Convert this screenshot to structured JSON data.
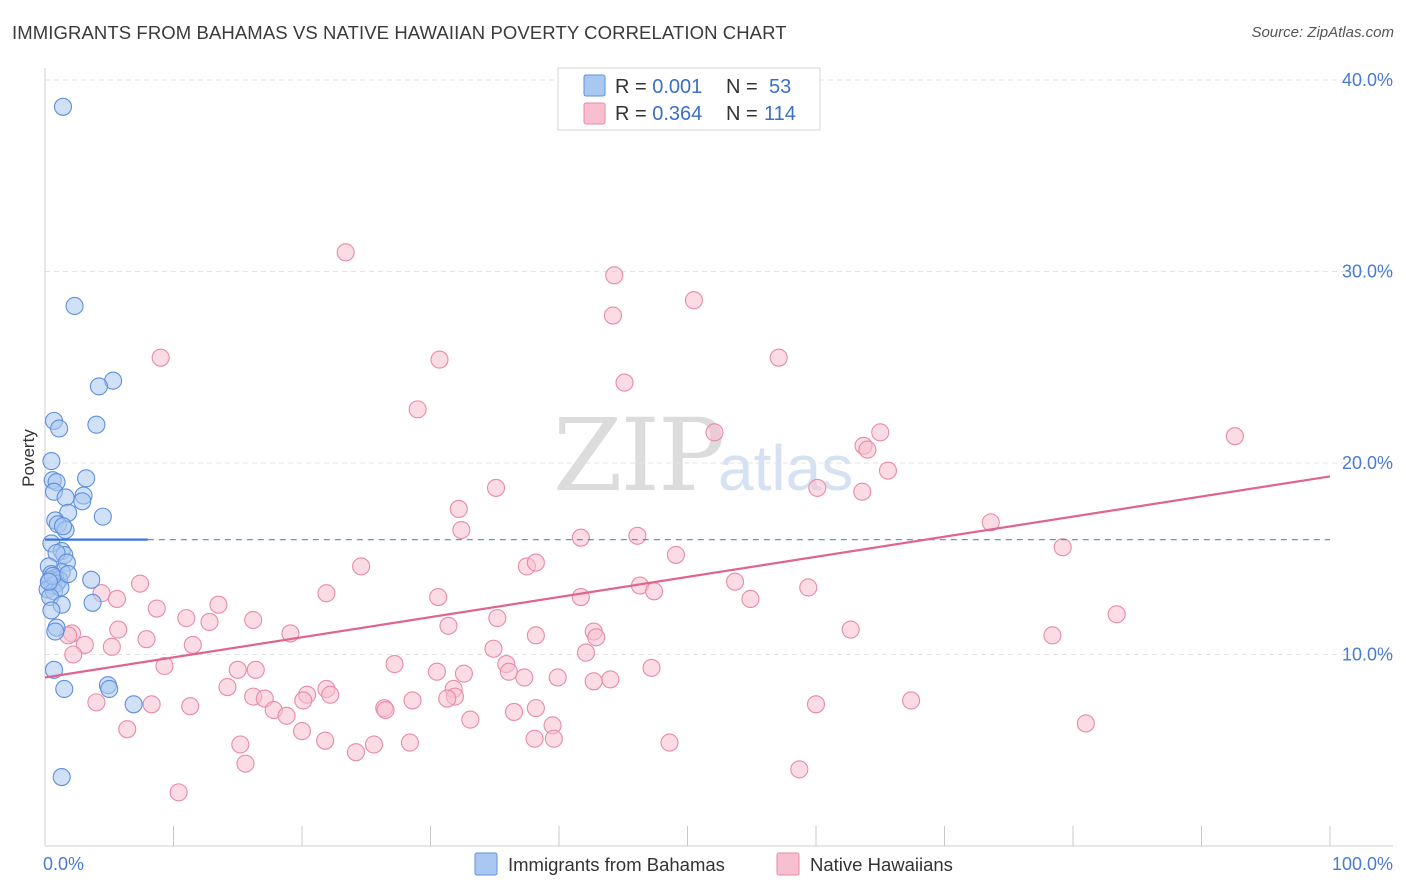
{
  "title": "IMMIGRANTS FROM BAHAMAS VS NATIVE HAWAIIAN POVERTY CORRELATION CHART",
  "source": "Source: ZipAtlas.com",
  "watermark": {
    "zip": "ZIP",
    "atlas": "atlas"
  },
  "colors": {
    "blue_fill": "#a9c8f1",
    "blue_stroke": "#5f8fdc",
    "blue_line": "#3a78d6",
    "pink_fill": "#f7bfd0",
    "pink_stroke": "#e88aa8",
    "pink_line": "#e0648f",
    "grid": "#e3e3e3",
    "axis_label": "#4a7bd0"
  },
  "legend": {
    "rows": [
      {
        "r_label": "R = ",
        "r_value": "0.001",
        "n_label": "N = ",
        "n_value": "53"
      },
      {
        "r_label": "R = ",
        "r_value": "0.364",
        "n_label": "N = ",
        "n_value": "114"
      }
    ]
  },
  "bottom_legend": [
    "Immigrants from Bahamas",
    "Native Hawaiians"
  ],
  "chart_data": {
    "type": "scatter",
    "title": "IMMIGRANTS FROM BAHAMAS VS NATIVE HAWAIIAN POVERTY CORRELATION CHART",
    "xlabel": "",
    "ylabel": "Poverty",
    "xlim": [
      0,
      100
    ],
    "ylim": [
      0,
      40
    ],
    "y_ticks": [
      {
        "value": 10,
        "label": "10.0%"
      },
      {
        "value": 20,
        "label": "20.0%"
      },
      {
        "value": 30,
        "label": "30.0%"
      },
      {
        "value": 40,
        "label": "40.0%"
      }
    ],
    "x_tick_labels": {
      "min": "0.0%",
      "max": "100.0%"
    },
    "grid": true,
    "legend_position": "top-center",
    "series": [
      {
        "name": "Immigrants from Bahamas",
        "color": "blue",
        "R": 0.001,
        "N": 53,
        "trend": {
          "x1": 0,
          "y1": 16.0,
          "x2": 8,
          "y2": 16.0,
          "dashed_to_x": 100
        },
        "points": [
          [
            1.4,
            38.6
          ],
          [
            2.3,
            28.2
          ],
          [
            5.3,
            24.3
          ],
          [
            4.2,
            24.0
          ],
          [
            0.7,
            22.2
          ],
          [
            1.1,
            21.8
          ],
          [
            4.0,
            22.0
          ],
          [
            0.5,
            20.1
          ],
          [
            3.2,
            19.2
          ],
          [
            0.6,
            19.1
          ],
          [
            0.9,
            19.0
          ],
          [
            0.7,
            18.5
          ],
          [
            1.6,
            18.2
          ],
          [
            3.0,
            18.3
          ],
          [
            2.9,
            18.0
          ],
          [
            1.8,
            17.4
          ],
          [
            4.5,
            17.2
          ],
          [
            0.8,
            17.0
          ],
          [
            1.0,
            16.8
          ],
          [
            1.6,
            16.5
          ],
          [
            1.4,
            16.7
          ],
          [
            0.5,
            15.8
          ],
          [
            1.3,
            15.4
          ],
          [
            1.5,
            15.2
          ],
          [
            0.9,
            15.3
          ],
          [
            1.7,
            14.8
          ],
          [
            1.3,
            14.3
          ],
          [
            0.3,
            14.6
          ],
          [
            0.5,
            14.2
          ],
          [
            0.8,
            14.0
          ],
          [
            0.4,
            13.9
          ],
          [
            1.1,
            13.9
          ],
          [
            3.6,
            13.9
          ],
          [
            0.6,
            13.6
          ],
          [
            0.9,
            13.7
          ],
          [
            0.2,
            13.4
          ],
          [
            0.7,
            13.3
          ],
          [
            1.2,
            13.5
          ],
          [
            0.4,
            13.0
          ],
          [
            1.3,
            12.6
          ],
          [
            0.5,
            12.3
          ],
          [
            3.7,
            12.7
          ],
          [
            0.9,
            11.4
          ],
          [
            0.8,
            11.2
          ],
          [
            0.7,
            9.2
          ],
          [
            1.5,
            8.2
          ],
          [
            4.9,
            8.4
          ],
          [
            5.0,
            8.2
          ],
          [
            0.6,
            14.1
          ],
          [
            6.9,
            7.4
          ],
          [
            1.3,
            3.6
          ],
          [
            1.8,
            14.2
          ],
          [
            0.3,
            13.8
          ]
        ]
      },
      {
        "name": "Native Hawaiians",
        "color": "pink",
        "R": 0.364,
        "N": 114,
        "trend": {
          "x1": 0,
          "y1": 8.8,
          "x2": 100,
          "y2": 19.3
        },
        "points": [
          [
            23.4,
            31.0
          ],
          [
            44.3,
            29.8
          ],
          [
            50.5,
            28.5
          ],
          [
            44.2,
            27.7
          ],
          [
            30.7,
            25.4
          ],
          [
            9.0,
            25.5
          ],
          [
            57.1,
            25.5
          ],
          [
            45.1,
            24.2
          ],
          [
            29.0,
            22.8
          ],
          [
            52.1,
            21.6
          ],
          [
            65.0,
            21.6
          ],
          [
            92.6,
            21.4
          ],
          [
            63.7,
            20.9
          ],
          [
            64.0,
            20.7
          ],
          [
            65.6,
            19.6
          ],
          [
            35.1,
            18.7
          ],
          [
            60.1,
            18.7
          ],
          [
            63.6,
            18.5
          ],
          [
            32.2,
            17.6
          ],
          [
            32.4,
            16.5
          ],
          [
            73.6,
            16.9
          ],
          [
            41.7,
            16.1
          ],
          [
            46.1,
            16.2
          ],
          [
            79.2,
            15.6
          ],
          [
            49.1,
            15.2
          ],
          [
            37.5,
            14.6
          ],
          [
            38.2,
            14.8
          ],
          [
            24.6,
            14.6
          ],
          [
            53.7,
            13.8
          ],
          [
            7.4,
            13.7
          ],
          [
            46.3,
            13.6
          ],
          [
            59.4,
            13.5
          ],
          [
            47.4,
            13.3
          ],
          [
            21.9,
            13.2
          ],
          [
            30.6,
            13.0
          ],
          [
            41.7,
            13.0
          ],
          [
            54.9,
            12.9
          ],
          [
            4.4,
            13.2
          ],
          [
            5.6,
            12.9
          ],
          [
            13.5,
            12.6
          ],
          [
            8.7,
            12.4
          ],
          [
            83.4,
            12.1
          ],
          [
            35.2,
            11.9
          ],
          [
            11.0,
            11.9
          ],
          [
            16.2,
            11.8
          ],
          [
            12.8,
            11.7
          ],
          [
            31.4,
            11.5
          ],
          [
            5.7,
            11.3
          ],
          [
            62.7,
            11.3
          ],
          [
            42.7,
            11.2
          ],
          [
            2.1,
            11.1
          ],
          [
            1.8,
            11.0
          ],
          [
            38.2,
            11.0
          ],
          [
            19.1,
            11.1
          ],
          [
            78.4,
            11.0
          ],
          [
            42.9,
            10.9
          ],
          [
            7.9,
            10.8
          ],
          [
            3.1,
            10.5
          ],
          [
            11.5,
            10.5
          ],
          [
            5.2,
            10.4
          ],
          [
            34.9,
            10.3
          ],
          [
            42.1,
            10.1
          ],
          [
            2.2,
            10.0
          ],
          [
            27.2,
            9.5
          ],
          [
            35.9,
            9.5
          ],
          [
            9.3,
            9.4
          ],
          [
            15.0,
            9.2
          ],
          [
            16.4,
            9.2
          ],
          [
            30.5,
            9.1
          ],
          [
            32.6,
            9.0
          ],
          [
            36.1,
            9.1
          ],
          [
            47.2,
            9.3
          ],
          [
            37.3,
            8.8
          ],
          [
            39.9,
            8.8
          ],
          [
            44.0,
            8.7
          ],
          [
            31.8,
            8.2
          ],
          [
            42.7,
            8.6
          ],
          [
            14.2,
            8.3
          ],
          [
            21.9,
            8.2
          ],
          [
            31.9,
            7.8
          ],
          [
            20.4,
            7.9
          ],
          [
            31.3,
            7.7
          ],
          [
            16.2,
            7.8
          ],
          [
            17.1,
            7.7
          ],
          [
            11.3,
            7.3
          ],
          [
            20.1,
            7.6
          ],
          [
            22.2,
            7.9
          ],
          [
            17.8,
            7.1
          ],
          [
            26.4,
            7.2
          ],
          [
            28.6,
            7.6
          ],
          [
            26.5,
            7.1
          ],
          [
            38.2,
            7.2
          ],
          [
            33.1,
            6.6
          ],
          [
            36.5,
            7.0
          ],
          [
            39.5,
            6.3
          ],
          [
            20.0,
            6.0
          ],
          [
            21.8,
            5.5
          ],
          [
            6.4,
            6.1
          ],
          [
            15.2,
            5.3
          ],
          [
            25.6,
            5.3
          ],
          [
            28.4,
            5.4
          ],
          [
            38.1,
            5.6
          ],
          [
            39.6,
            5.6
          ],
          [
            48.6,
            5.4
          ],
          [
            15.6,
            4.3
          ],
          [
            24.2,
            4.9
          ],
          [
            58.7,
            4.0
          ],
          [
            10.4,
            2.8
          ],
          [
            4.0,
            7.5
          ],
          [
            8.3,
            7.4
          ],
          [
            60.0,
            7.4
          ],
          [
            67.4,
            7.6
          ],
          [
            81.0,
            6.4
          ],
          [
            18.8,
            6.8
          ]
        ]
      }
    ]
  }
}
